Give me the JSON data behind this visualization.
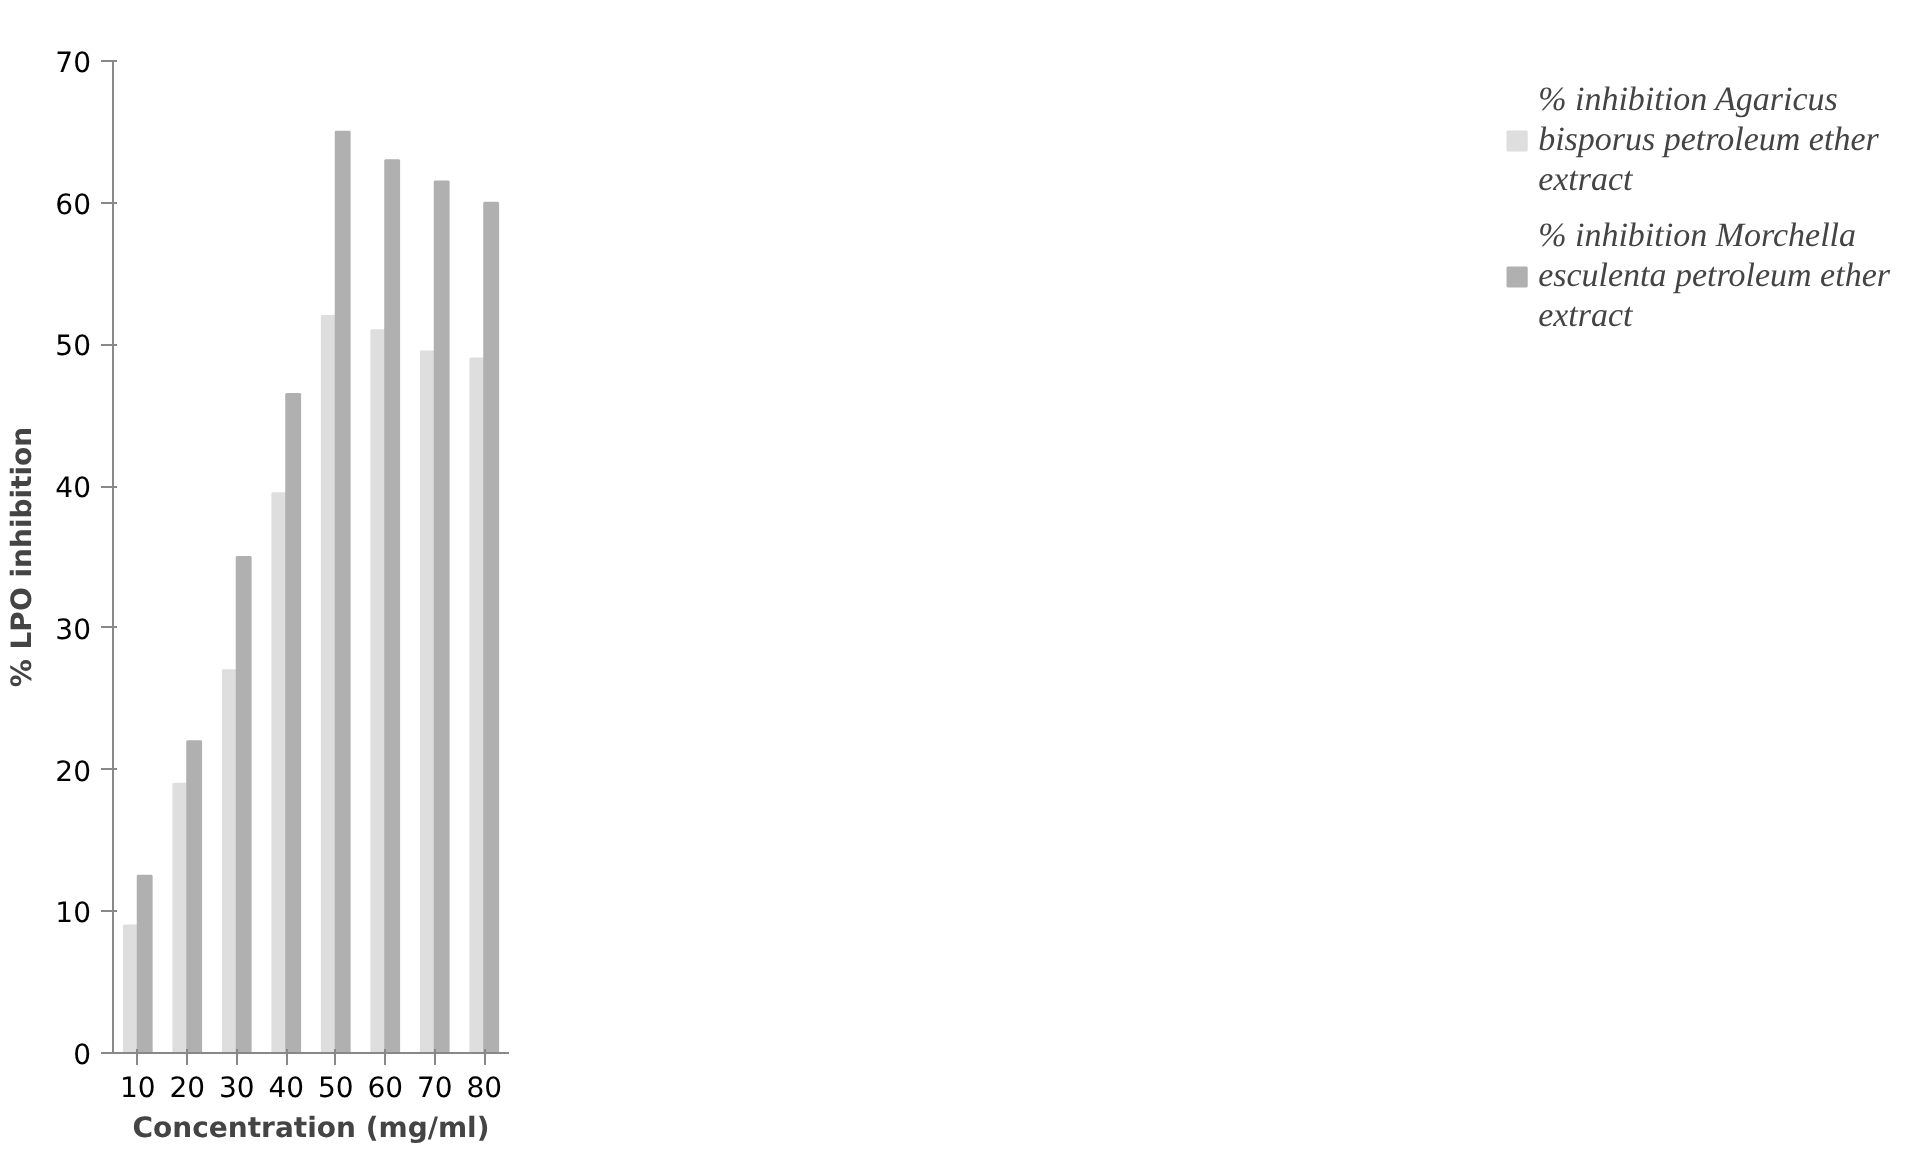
{
  "chart_data": {
    "type": "bar",
    "xlabel": "Concentration (mg/ml)",
    "ylabel": "% LPO inhibition",
    "categories": [
      "10",
      "20",
      "30",
      "40",
      "50",
      "60",
      "70",
      "80"
    ],
    "series": [
      {
        "name": "% inhibition Agaricus bisporus petroleum ether extract",
        "color": "#dedede",
        "values": [
          9,
          19,
          27,
          39.5,
          52,
          51,
          49.5,
          49
        ]
      },
      {
        "name": "% inhibition Morchella esculenta petroleum ether extract",
        "color": "#b0b0b0",
        "values": [
          12.5,
          22,
          35,
          46.5,
          65,
          63,
          61.5,
          60
        ]
      }
    ],
    "ylim": [
      0,
      70
    ],
    "yticks": [
      0,
      10,
      20,
      30,
      40,
      50,
      60,
      70
    ],
    "grid": false,
    "legend": "right"
  }
}
